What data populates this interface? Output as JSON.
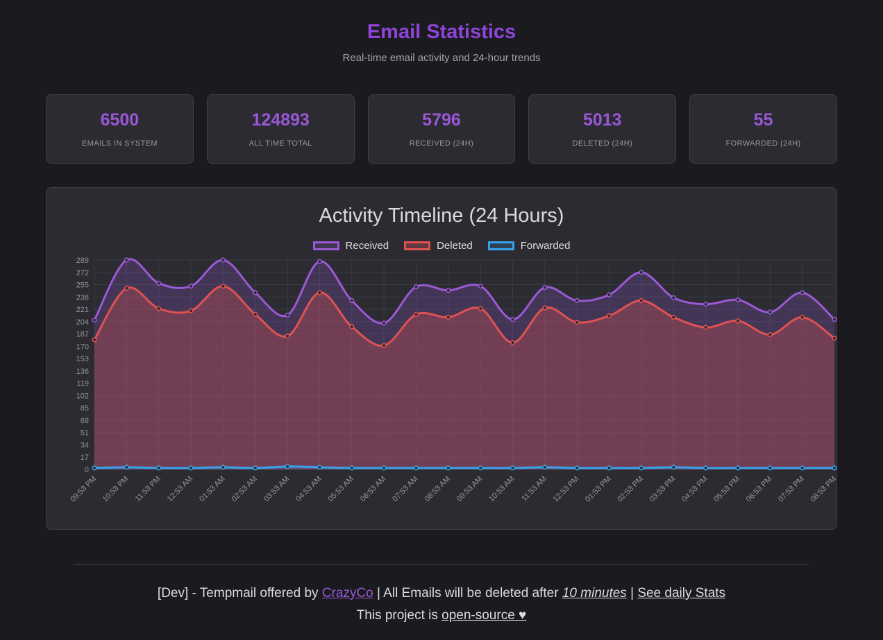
{
  "page": {
    "title": "Email Statistics",
    "subtitle": "Real-time email activity and 24-hour trends"
  },
  "stats": [
    {
      "value": "6500",
      "label": "EMAILS IN SYSTEM"
    },
    {
      "value": "124893",
      "label": "ALL TIME TOTAL"
    },
    {
      "value": "5796",
      "label": "RECEIVED (24H)"
    },
    {
      "value": "5013",
      "label": "DELETED (24H)"
    },
    {
      "value": "55",
      "label": "FORWARDED (24H)"
    }
  ],
  "chart_data": {
    "type": "line",
    "title": "Activity Timeline (24 Hours)",
    "categories": [
      "09:53 PM",
      "10:53 PM",
      "11:53 PM",
      "12:53 AM",
      "01:53 AM",
      "02:53 AM",
      "03:53 AM",
      "04:53 AM",
      "05:53 AM",
      "06:53 AM",
      "07:53 AM",
      "08:53 AM",
      "09:53 AM",
      "10:53 AM",
      "11:53 AM",
      "12:53 PM",
      "01:53 PM",
      "02:53 PM",
      "03:53 PM",
      "04:53 PM",
      "05:53 PM",
      "06:53 PM",
      "07:53 PM",
      "08:53 PM"
    ],
    "series": [
      {
        "name": "Received",
        "color": "#9b59d6",
        "fill": "rgba(155,89,214,0.22)",
        "values": [
          206,
          289,
          257,
          253,
          289,
          244,
          213,
          287,
          233,
          202,
          252,
          247,
          253,
          207,
          251,
          233,
          241,
          272,
          237,
          228,
          234,
          217,
          244,
          207
        ]
      },
      {
        "name": "Deleted",
        "color": "#e05252",
        "fill": "rgba(224,82,82,0.30)",
        "values": [
          179,
          250,
          222,
          219,
          253,
          214,
          184,
          244,
          197,
          171,
          214,
          210,
          222,
          175,
          223,
          203,
          212,
          233,
          210,
          196,
          205,
          186,
          210,
          181
        ]
      },
      {
        "name": "Forwarded",
        "color": "#36a2eb",
        "fill": "rgba(54,162,235,0.20)",
        "values": [
          2,
          3,
          2,
          2,
          3,
          2,
          4,
          3,
          2,
          2,
          2,
          2,
          2,
          2,
          3,
          2,
          2,
          2,
          3,
          2,
          2,
          2,
          2,
          2
        ]
      }
    ],
    "ylim": [
      0,
      289
    ],
    "ytick_step": 17,
    "grid": true,
    "legend_position": "top",
    "grid_color": "#3a3a42",
    "tick_label_color": "#96969e"
  },
  "footer": {
    "line1_prefix": "[Dev] - Tempmail offered by ",
    "link_crazyco": "CrazyCo",
    "line1_mid": " | All Emails will be deleted after ",
    "link_minutes": "10 minutes",
    "line1_sep": " | ",
    "link_daily_stats": "See daily Stats",
    "line2_prefix": "This project is ",
    "link_open_source": "open-source ♥"
  }
}
